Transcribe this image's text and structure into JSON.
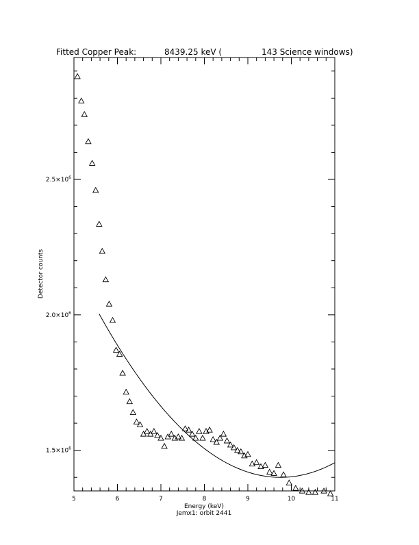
{
  "chart_data": {
    "type": "scatter",
    "title_segments": [
      "Fitted Copper Peak:",
      "8439.25 keV (",
      "143 Science windows)"
    ],
    "xlabel": "Energy (keV)",
    "subtitle": "Jemx1: orbit 2441",
    "ylabel": "Detector counts",
    "xlim": [
      5,
      11
    ],
    "ylim": [
      1350000,
      2950000
    ],
    "x_ticks": [
      5,
      6,
      7,
      8,
      9,
      10,
      11
    ],
    "y_ticks": [
      {
        "value": 1500000,
        "mantissa": "1.5×10",
        "exp": "6"
      },
      {
        "value": 2000000,
        "mantissa": "2.0×10",
        "exp": "6"
      },
      {
        "value": 2500000,
        "mantissa": "2.5×10",
        "exp": "6"
      }
    ],
    "grid": false,
    "series": [
      {
        "marker": "triangle",
        "points": [
          [
            5.08,
            2880000
          ],
          [
            5.17,
            2790000
          ],
          [
            5.24,
            2740000
          ],
          [
            5.33,
            2640000
          ],
          [
            5.42,
            2560000
          ],
          [
            5.5,
            2460000
          ],
          [
            5.58,
            2335000
          ],
          [
            5.65,
            2235000
          ],
          [
            5.73,
            2130000
          ],
          [
            5.81,
            2040000
          ],
          [
            5.89,
            1980000
          ],
          [
            5.97,
            1870000
          ],
          [
            6.05,
            1855000
          ],
          [
            6.12,
            1785000
          ],
          [
            6.2,
            1715000
          ],
          [
            6.28,
            1680000
          ],
          [
            6.36,
            1640000
          ],
          [
            6.44,
            1605000
          ],
          [
            6.52,
            1595000
          ],
          [
            6.6,
            1560000
          ],
          [
            6.68,
            1570000
          ],
          [
            6.76,
            1560000
          ],
          [
            6.84,
            1570000
          ],
          [
            6.92,
            1555000
          ],
          [
            7.0,
            1545000
          ],
          [
            7.08,
            1515000
          ],
          [
            7.16,
            1550000
          ],
          [
            7.24,
            1560000
          ],
          [
            7.32,
            1545000
          ],
          [
            7.4,
            1550000
          ],
          [
            7.48,
            1545000
          ],
          [
            7.56,
            1580000
          ],
          [
            7.64,
            1575000
          ],
          [
            7.72,
            1560000
          ],
          [
            7.8,
            1545000
          ],
          [
            7.88,
            1570000
          ],
          [
            7.96,
            1545000
          ],
          [
            8.04,
            1570000
          ],
          [
            8.12,
            1575000
          ],
          [
            8.2,
            1540000
          ],
          [
            8.28,
            1530000
          ],
          [
            8.36,
            1545000
          ],
          [
            8.44,
            1560000
          ],
          [
            8.52,
            1535000
          ],
          [
            8.6,
            1520000
          ],
          [
            8.68,
            1510000
          ],
          [
            8.76,
            1500000
          ],
          [
            8.84,
            1495000
          ],
          [
            8.92,
            1480000
          ],
          [
            9.0,
            1485000
          ],
          [
            9.1,
            1450000
          ],
          [
            9.2,
            1455000
          ],
          [
            9.3,
            1440000
          ],
          [
            9.4,
            1445000
          ],
          [
            9.5,
            1420000
          ],
          [
            9.6,
            1415000
          ],
          [
            9.7,
            1445000
          ],
          [
            9.82,
            1410000
          ],
          [
            9.95,
            1380000
          ],
          [
            10.1,
            1360000
          ],
          [
            10.25,
            1350000
          ],
          [
            10.4,
            1345000
          ],
          [
            10.55,
            1345000
          ],
          [
            10.75,
            1350000
          ],
          [
            10.9,
            1340000
          ]
        ]
      },
      {
        "marker": "line",
        "fit": {
          "type": "quadratic",
          "vertex_x": 9.75,
          "vertex_y": 1400000,
          "coef_a": 34700
        },
        "x_start": 5.58,
        "x_end": 11.0
      }
    ]
  }
}
